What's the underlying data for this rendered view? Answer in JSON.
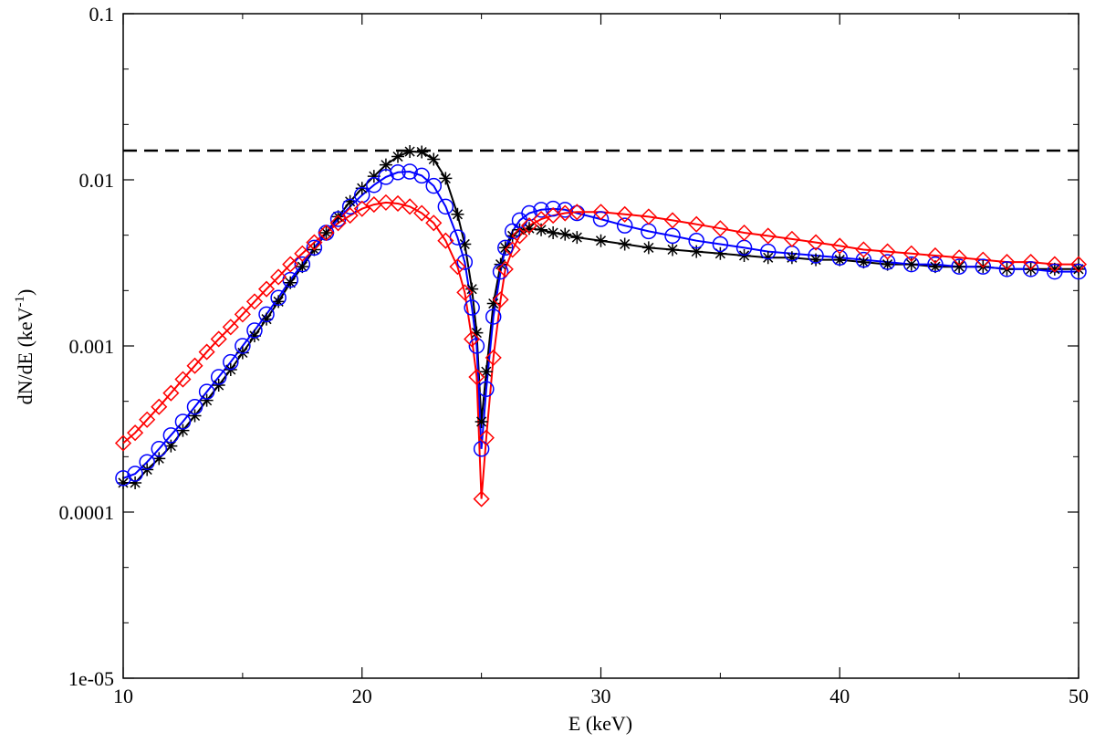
{
  "chart_data": {
    "type": "line",
    "title": "",
    "xlabel": "E (keV)",
    "ylabel": "dN/dE (keV",
    "ylabel_sup": "-1",
    "ylabel_close": ")",
    "xlim": [
      10,
      50
    ],
    "ylim": [
      1e-05,
      0.1
    ],
    "xscale": "linear",
    "yscale": "log",
    "x_ticks": [
      10,
      20,
      30,
      40,
      50
    ],
    "x_tick_labels": [
      "10",
      "20",
      "30",
      "40",
      "50"
    ],
    "y_ticks": [
      1e-05,
      0.0001,
      0.001,
      0.01,
      0.1
    ],
    "y_tick_labels": [
      "1e-05",
      "0.0001",
      "0.001",
      "0.01",
      "0.1"
    ],
    "reference_line": {
      "y": 0.015,
      "style": "dashed",
      "color": "#000000"
    },
    "series": [
      {
        "name": "star series",
        "color": "#000000",
        "marker": "star",
        "line": true,
        "x": [
          10.0,
          10.5,
          11.0,
          11.5,
          12.0,
          12.5,
          13.0,
          13.5,
          14.0,
          14.5,
          15.0,
          15.5,
          16.0,
          16.5,
          17.0,
          17.5,
          18.0,
          18.5,
          19.0,
          19.5,
          20.0,
          20.5,
          21.0,
          21.5,
          22.0,
          22.5,
          23.0,
          23.5,
          24.0,
          24.3,
          24.6,
          24.8,
          25.0,
          25.2,
          25.5,
          25.8,
          26.0,
          26.3,
          26.6,
          27.0,
          27.5,
          28.0,
          28.5,
          29.0,
          30.0,
          31.0,
          32.0,
          33.0,
          34.0,
          35.0,
          36.0,
          37.0,
          38.0,
          39.0,
          40.0,
          41.0,
          42.0,
          43.0,
          44.0,
          45.0,
          46.0,
          47.0,
          48.0,
          49.0,
          50.0
        ],
        "y": [
          0.00015,
          0.00015,
          0.00018,
          0.00021,
          0.00025,
          0.00031,
          0.00038,
          0.00047,
          0.00058,
          0.00072,
          0.00091,
          0.00115,
          0.00145,
          0.00185,
          0.0024,
          0.003,
          0.0038,
          0.0048,
          0.006,
          0.0074,
          0.0089,
          0.0105,
          0.0123,
          0.0138,
          0.0148,
          0.0147,
          0.0133,
          0.0102,
          0.0062,
          0.0041,
          0.0022,
          0.0012,
          0.00035,
          0.0007,
          0.0018,
          0.0031,
          0.0039,
          0.0046,
          0.005,
          0.0051,
          0.005,
          0.0048,
          0.0047,
          0.0045,
          0.0043,
          0.0041,
          0.0039,
          0.0038,
          0.0037,
          0.0036,
          0.0035,
          0.0034,
          0.0034,
          0.0033,
          0.0033,
          0.0032,
          0.0031,
          0.0031,
          0.003,
          0.003,
          0.003,
          0.0029,
          0.0029,
          0.0029,
          0.0029
        ]
      },
      {
        "name": "circle series",
        "color": "#0000ff",
        "marker": "circle",
        "line": true,
        "x": [
          10.0,
          10.5,
          11.0,
          11.5,
          12.0,
          12.5,
          13.0,
          13.5,
          14.0,
          14.5,
          15.0,
          15.5,
          16.0,
          16.5,
          17.0,
          17.5,
          18.0,
          18.5,
          19.0,
          19.5,
          20.0,
          20.5,
          21.0,
          21.5,
          22.0,
          22.5,
          23.0,
          23.5,
          24.0,
          24.3,
          24.6,
          24.8,
          25.0,
          25.2,
          25.5,
          25.8,
          26.0,
          26.3,
          26.6,
          27.0,
          27.5,
          28.0,
          28.5,
          29.0,
          30.0,
          31.0,
          32.0,
          33.0,
          34.0,
          35.0,
          36.0,
          37.0,
          38.0,
          39.0,
          40.0,
          41.0,
          42.0,
          43.0,
          44.0,
          45.0,
          46.0,
          47.0,
          48.0,
          49.0,
          50.0
        ],
        "y": [
          0.00016,
          0.00017,
          0.0002,
          0.00024,
          0.00029,
          0.00035,
          0.00043,
          0.00053,
          0.00065,
          0.0008,
          0.001,
          0.00124,
          0.00155,
          0.00195,
          0.0025,
          0.0031,
          0.0039,
          0.0048,
          0.0058,
          0.0069,
          0.0081,
          0.0093,
          0.0104,
          0.0111,
          0.0112,
          0.0106,
          0.0092,
          0.0069,
          0.0045,
          0.0032,
          0.0017,
          0.001,
          0.00024,
          0.00055,
          0.0015,
          0.0028,
          0.0039,
          0.0049,
          0.0057,
          0.0063,
          0.0066,
          0.0067,
          0.0066,
          0.0063,
          0.0058,
          0.0053,
          0.0049,
          0.0046,
          0.0043,
          0.0041,
          0.0039,
          0.0037,
          0.0036,
          0.0035,
          0.0034,
          0.0033,
          0.0032,
          0.0031,
          0.0031,
          0.003,
          0.003,
          0.0029,
          0.0029,
          0.0028,
          0.0028
        ]
      },
      {
        "name": "diamond series",
        "color": "#ff0000",
        "marker": "diamond",
        "line": true,
        "x": [
          10.0,
          10.5,
          11.0,
          11.5,
          12.0,
          12.5,
          13.0,
          13.5,
          14.0,
          14.5,
          15.0,
          15.5,
          16.0,
          16.5,
          17.0,
          17.5,
          18.0,
          18.5,
          19.0,
          19.5,
          20.0,
          20.5,
          21.0,
          21.5,
          22.0,
          22.5,
          23.0,
          23.5,
          24.0,
          24.3,
          24.6,
          24.8,
          25.0,
          25.2,
          25.5,
          25.8,
          26.0,
          26.3,
          26.6,
          27.0,
          27.5,
          28.0,
          28.5,
          29.0,
          30.0,
          31.0,
          32.0,
          33.0,
          34.0,
          35.0,
          36.0,
          37.0,
          38.0,
          39.0,
          40.0,
          41.0,
          42.0,
          43.0,
          44.0,
          45.0,
          46.0,
          47.0,
          48.0,
          49.0,
          50.0
        ],
        "y": [
          0.00026,
          0.0003,
          0.00036,
          0.00043,
          0.00052,
          0.00063,
          0.00076,
          0.00092,
          0.0011,
          0.0013,
          0.00155,
          0.00185,
          0.0022,
          0.0026,
          0.0031,
          0.0036,
          0.0042,
          0.0048,
          0.0055,
          0.0061,
          0.0067,
          0.0071,
          0.0073,
          0.0072,
          0.0069,
          0.0063,
          0.0055,
          0.0043,
          0.003,
          0.0021,
          0.0011,
          0.00065,
          0.00012,
          0.00028,
          0.00085,
          0.0019,
          0.0029,
          0.0038,
          0.0046,
          0.0053,
          0.0058,
          0.0061,
          0.0063,
          0.0064,
          0.0064,
          0.0062,
          0.006,
          0.0057,
          0.0054,
          0.0051,
          0.0048,
          0.0046,
          0.0044,
          0.0042,
          0.004,
          0.0038,
          0.0037,
          0.0036,
          0.0035,
          0.0034,
          0.0033,
          0.0032,
          0.0032,
          0.0031,
          0.0031
        ]
      }
    ]
  }
}
